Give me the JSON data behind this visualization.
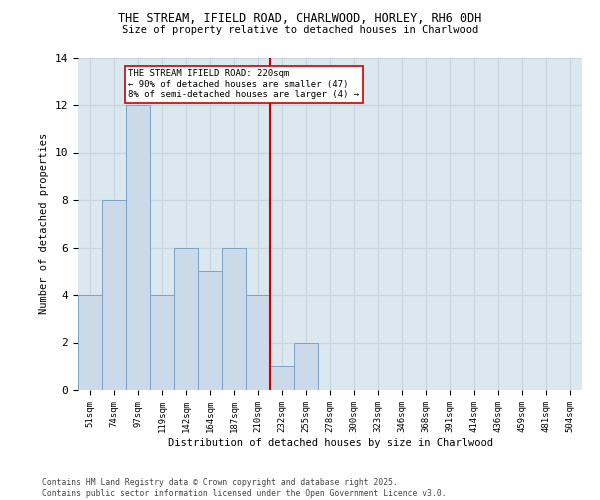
{
  "title_line1": "THE STREAM, IFIELD ROAD, CHARLWOOD, HORLEY, RH6 0DH",
  "title_line2": "Size of property relative to detached houses in Charlwood",
  "xlabel": "Distribution of detached houses by size in Charlwood",
  "ylabel": "Number of detached properties",
  "categories": [
    "51sqm",
    "74sqm",
    "97sqm",
    "119sqm",
    "142sqm",
    "164sqm",
    "187sqm",
    "210sqm",
    "232sqm",
    "255sqm",
    "278sqm",
    "300sqm",
    "323sqm",
    "346sqm",
    "368sqm",
    "391sqm",
    "414sqm",
    "436sqm",
    "459sqm",
    "481sqm",
    "504sqm"
  ],
  "values": [
    4,
    8,
    12,
    4,
    6,
    5,
    6,
    4,
    1,
    2,
    0,
    0,
    0,
    0,
    0,
    0,
    0,
    0,
    0,
    0,
    0
  ],
  "bar_color": "#ccd9e8",
  "bar_edge_color": "#7aa3c8",
  "grid_color": "#c8d4e0",
  "background_color": "#dce8f0",
  "vline_x_index": 7.5,
  "vline_color": "#cc0000",
  "annotation_text": "THE STREAM IFIELD ROAD: 220sqm\n← 90% of detached houses are smaller (47)\n8% of semi-detached houses are larger (4) →",
  "annotation_box_color": "#ffffff",
  "annotation_box_edge": "#cc0000",
  "footnote": "Contains HM Land Registry data © Crown copyright and database right 2025.\nContains public sector information licensed under the Open Government Licence v3.0.",
  "ylim": [
    0,
    14
  ],
  "yticks": [
    0,
    2,
    4,
    6,
    8,
    10,
    12,
    14
  ]
}
